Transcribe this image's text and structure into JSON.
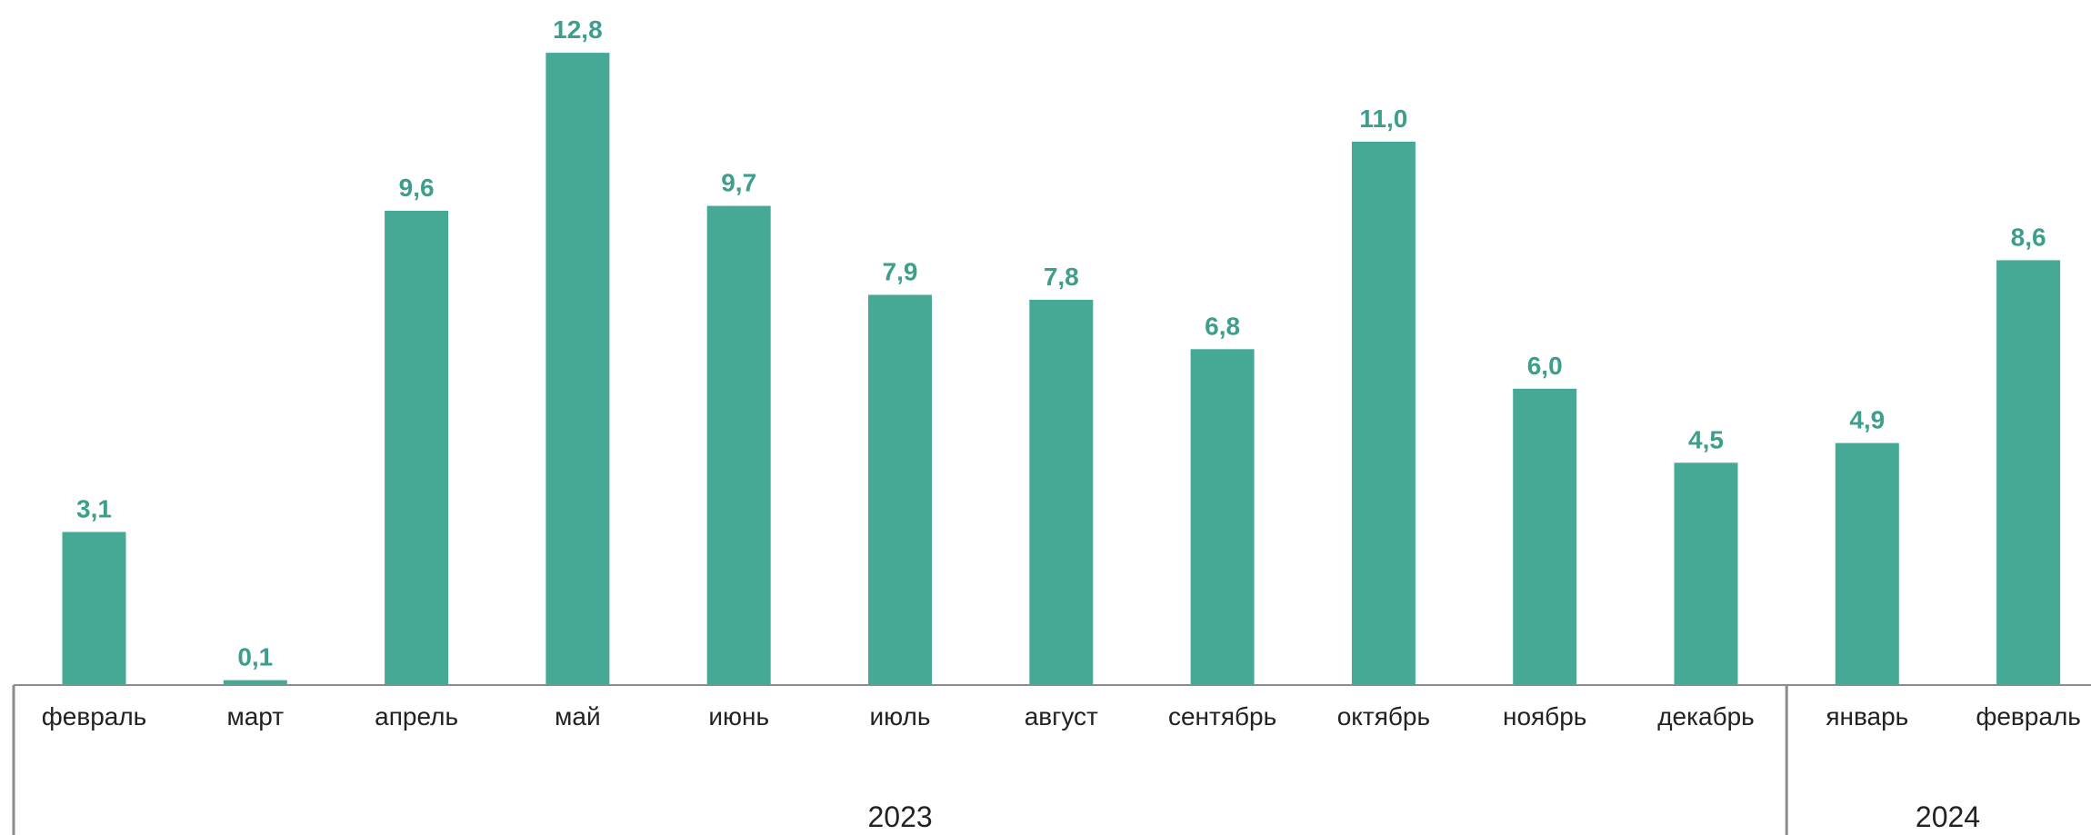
{
  "chart_data": {
    "type": "bar",
    "categories": [
      "февраль",
      "март",
      "апрель",
      "май",
      "июнь",
      "июль",
      "август",
      "сентябрь",
      "октябрь",
      "ноябрь",
      "декабрь",
      "январь",
      "февраль"
    ],
    "values": [
      3.1,
      0.1,
      9.6,
      12.8,
      9.7,
      7.9,
      7.8,
      6.8,
      11.0,
      6.0,
      4.5,
      4.9,
      8.6
    ],
    "data_labels": [
      "3,1",
      "0,1",
      "9,6",
      "12,8",
      "9,7",
      "7,9",
      "7,8",
      "6,8",
      "11,0",
      "6,0",
      "4,5",
      "4,9",
      "8,6"
    ],
    "groups": [
      {
        "label": "2023",
        "count": 11
      },
      {
        "label": "2024",
        "count": 2
      }
    ],
    "title": "",
    "xlabel": "",
    "ylabel": "",
    "ylim": [
      0,
      13.5
    ],
    "grid": false,
    "legend": "none",
    "colors": {
      "bar": "#46A996",
      "label": "#3E9E8C",
      "axis": "#8C8C8C"
    }
  }
}
